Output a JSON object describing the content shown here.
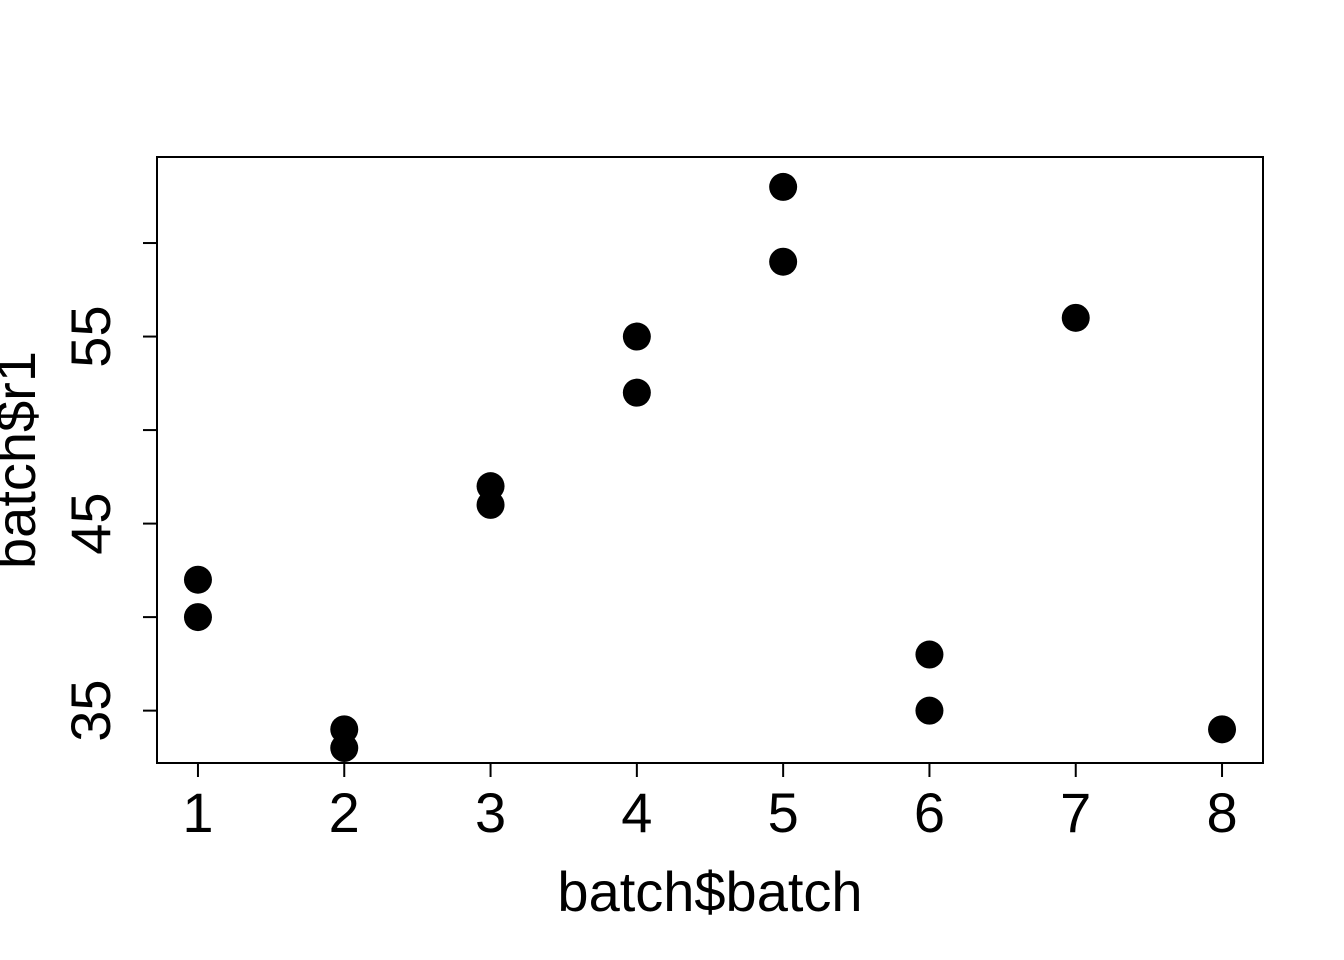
{
  "chart_data": {
    "type": "scatter",
    "title": "",
    "xlabel": "batch$batch",
    "ylabel": "batch$r1",
    "xlim": [
      0.72,
      8.28
    ],
    "ylim": [
      32.2,
      64.6
    ],
    "x_ticks": [
      1,
      2,
      3,
      4,
      5,
      6,
      7,
      8
    ],
    "x_tick_labels": [
      "1",
      "2",
      "3",
      "4",
      "5",
      "6",
      "7",
      "8"
    ],
    "y_ticks": [
      35,
      40,
      45,
      50,
      55,
      60
    ],
    "y_tick_labels": [
      "35",
      "",
      "45",
      "",
      "55",
      ""
    ],
    "grid": false,
    "legend": "none",
    "marker": "filled-circle",
    "color": "#000000",
    "points": [
      {
        "x": 1,
        "y": 42
      },
      {
        "x": 1,
        "y": 40
      },
      {
        "x": 2,
        "y": 34
      },
      {
        "x": 2,
        "y": 33
      },
      {
        "x": 3,
        "y": 47
      },
      {
        "x": 3,
        "y": 46
      },
      {
        "x": 4,
        "y": 55
      },
      {
        "x": 4,
        "y": 52
      },
      {
        "x": 5,
        "y": 63
      },
      {
        "x": 5,
        "y": 59
      },
      {
        "x": 6,
        "y": 38
      },
      {
        "x": 6,
        "y": 35
      },
      {
        "x": 7,
        "y": 56
      },
      {
        "x": 8,
        "y": 34
      }
    ]
  }
}
